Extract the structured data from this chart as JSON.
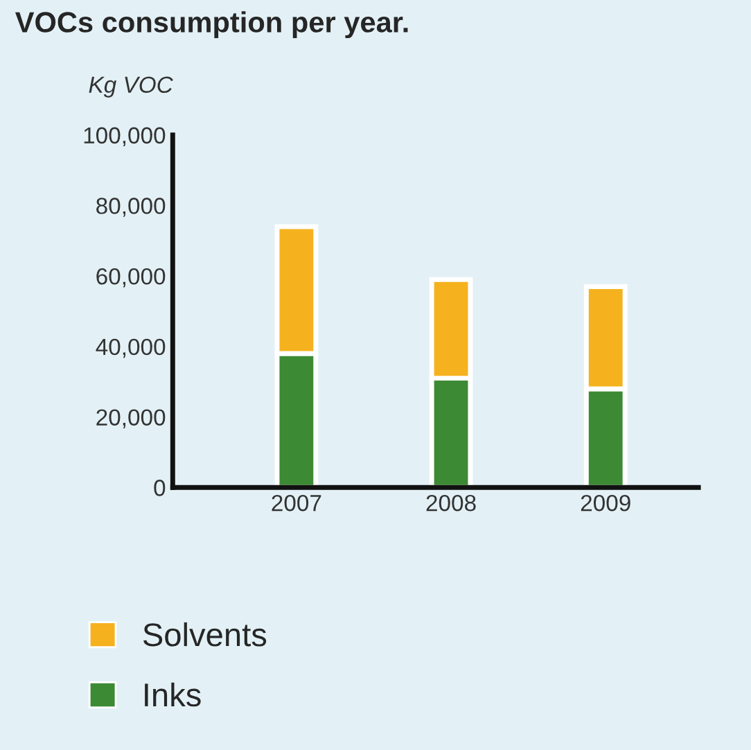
{
  "chart_data": {
    "type": "bar",
    "title": "VOCs consumption per year.",
    "ylabel": "Kg VOC",
    "categories": [
      "2007",
      "2008",
      "2009"
    ],
    "stacked": true,
    "series": [
      {
        "name": "Inks",
        "color": "#3d8a35",
        "values": [
          38000,
          31000,
          28000
        ]
      },
      {
        "name": "Solvents",
        "color": "#f5b21e",
        "values": [
          36000,
          28000,
          29000
        ]
      }
    ],
    "ylim": [
      0,
      100000
    ],
    "yticks": [
      {
        "value": 0,
        "label": "0"
      },
      {
        "value": 20000,
        "label": "20,000"
      },
      {
        "value": 40000,
        "label": "40,000"
      },
      {
        "value": 60000,
        "label": "60,000"
      },
      {
        "value": 80000,
        "label": "80,000"
      },
      {
        "value": 100000,
        "label": "100,000"
      }
    ],
    "grid": false,
    "legend": "bottom left"
  }
}
